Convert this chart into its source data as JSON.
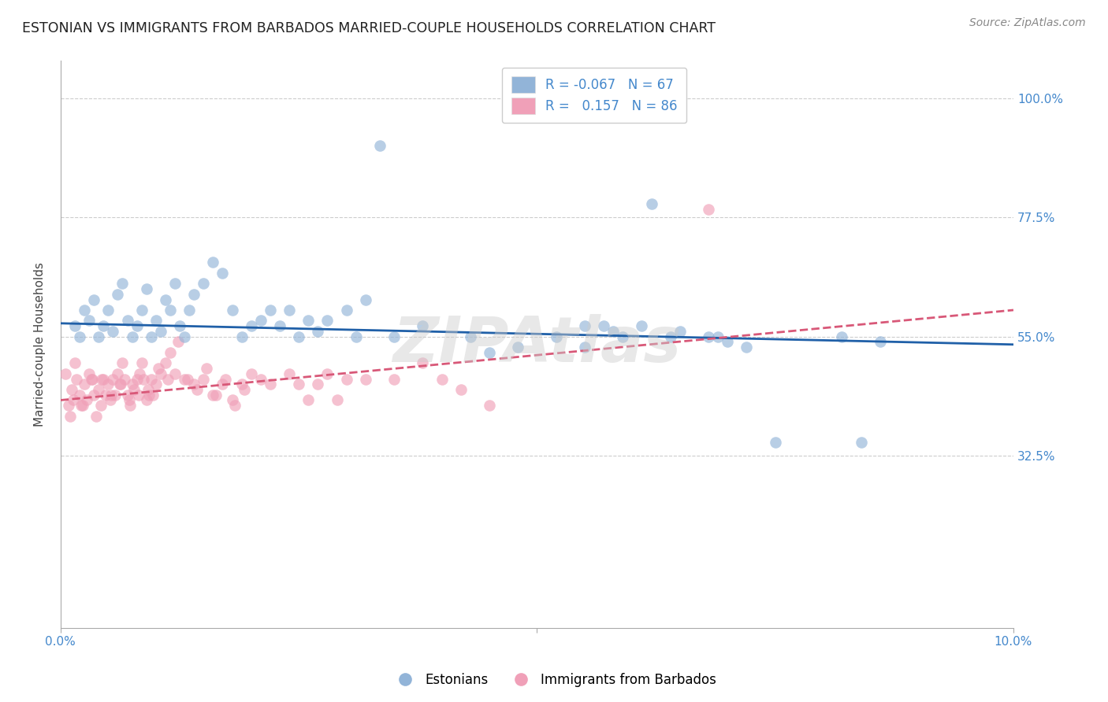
{
  "title": "ESTONIAN VS IMMIGRANTS FROM BARBADOS MARRIED-COUPLE HOUSEHOLDS CORRELATION CHART",
  "source": "Source: ZipAtlas.com",
  "ylabel": "Married-couple Households",
  "xlim": [
    0.0,
    10.0
  ],
  "ylim": [
    0.0,
    107.0
  ],
  "yticks": [
    32.5,
    55.0,
    77.5,
    100.0
  ],
  "ytick_labels": [
    "32.5%",
    "55.0%",
    "77.5%",
    "100.0%"
  ],
  "estonian_R": -0.067,
  "estonian_N": 67,
  "barbados_R": 0.157,
  "barbados_N": 86,
  "estonian_color": "#92b4d8",
  "barbados_color": "#f0a0b8",
  "estonian_line_color": "#2060a8",
  "barbados_line_color": "#d85878",
  "background_color": "#ffffff",
  "grid_color": "#cccccc",
  "title_fontsize": 12.5,
  "source_fontsize": 10,
  "axis_label_color": "#4488cc",
  "legend_label_color": "#4488cc",
  "watermark": "ZIPAtlas",
  "legend1_text": "R = -0.067   N = 67",
  "legend2_text": "R =   0.157   N = 86",
  "series1_label": "Estonians",
  "series2_label": "Immigrants from Barbados",
  "estonian_line_y0": 57.5,
  "estonian_line_y1": 53.5,
  "barbados_line_y0": 43.0,
  "barbados_line_y1": 60.0,
  "est_x": [
    0.15,
    0.2,
    0.25,
    0.3,
    0.35,
    0.4,
    0.45,
    0.5,
    0.55,
    0.6,
    0.65,
    0.7,
    0.75,
    0.8,
    0.85,
    0.9,
    0.95,
    1.0,
    1.05,
    1.1,
    1.15,
    1.2,
    1.25,
    1.3,
    1.35,
    1.4,
    1.5,
    1.6,
    1.7,
    1.8,
    1.9,
    2.0,
    2.1,
    2.2,
    2.3,
    2.4,
    2.5,
    2.6,
    2.7,
    2.8,
    3.0,
    3.1,
    3.2,
    3.5,
    3.8,
    4.3,
    4.5,
    5.2,
    5.5,
    5.8,
    5.9,
    6.1,
    6.4,
    7.0,
    7.2,
    8.2,
    8.6,
    3.35,
    6.2,
    4.8,
    6.8,
    5.5,
    6.5,
    5.7,
    8.4,
    7.5,
    6.9
  ],
  "est_y": [
    57,
    55,
    60,
    58,
    62,
    55,
    57,
    60,
    56,
    63,
    65,
    58,
    55,
    57,
    60,
    64,
    55,
    58,
    56,
    62,
    60,
    65,
    57,
    55,
    60,
    63,
    65,
    69,
    67,
    60,
    55,
    57,
    58,
    60,
    57,
    60,
    55,
    58,
    56,
    58,
    60,
    55,
    62,
    55,
    57,
    55,
    52,
    55,
    57,
    56,
    55,
    57,
    55,
    54,
    53,
    55,
    54,
    91,
    80,
    53,
    55,
    53,
    56,
    57,
    35,
    35,
    55
  ],
  "bar_x": [
    0.05,
    0.08,
    0.1,
    0.12,
    0.15,
    0.17,
    0.2,
    0.22,
    0.25,
    0.27,
    0.3,
    0.32,
    0.35,
    0.37,
    0.4,
    0.42,
    0.45,
    0.47,
    0.5,
    0.52,
    0.55,
    0.57,
    0.6,
    0.62,
    0.65,
    0.67,
    0.7,
    0.72,
    0.75,
    0.77,
    0.8,
    0.82,
    0.85,
    0.87,
    0.9,
    0.92,
    0.95,
    0.97,
    1.0,
    1.05,
    1.1,
    1.15,
    1.2,
    1.3,
    1.4,
    1.5,
    1.6,
    1.7,
    1.8,
    1.9,
    2.0,
    2.1,
    2.2,
    2.4,
    2.5,
    2.6,
    2.7,
    2.8,
    2.9,
    3.0,
    3.2,
    3.5,
    3.8,
    4.0,
    4.2,
    4.5,
    0.13,
    0.23,
    0.33,
    0.43,
    0.53,
    0.63,
    0.73,
    0.83,
    0.93,
    1.03,
    1.13,
    1.23,
    1.33,
    1.43,
    1.53,
    1.63,
    1.73,
    1.83,
    1.93,
    6.8
  ],
  "bar_y": [
    48,
    42,
    40,
    45,
    50,
    47,
    44,
    42,
    46,
    43,
    48,
    47,
    44,
    40,
    45,
    42,
    47,
    44,
    46,
    43,
    47,
    44,
    48,
    46,
    50,
    47,
    44,
    43,
    46,
    45,
    47,
    44,
    50,
    47,
    43,
    45,
    47,
    44,
    46,
    48,
    50,
    52,
    48,
    47,
    46,
    47,
    44,
    46,
    43,
    46,
    48,
    47,
    46,
    48,
    46,
    43,
    46,
    48,
    43,
    47,
    47,
    47,
    50,
    47,
    45,
    42,
    43,
    42,
    47,
    47,
    44,
    46,
    42,
    48,
    44,
    49,
    47,
    54,
    47,
    45,
    49,
    44,
    47,
    42,
    45,
    79
  ]
}
